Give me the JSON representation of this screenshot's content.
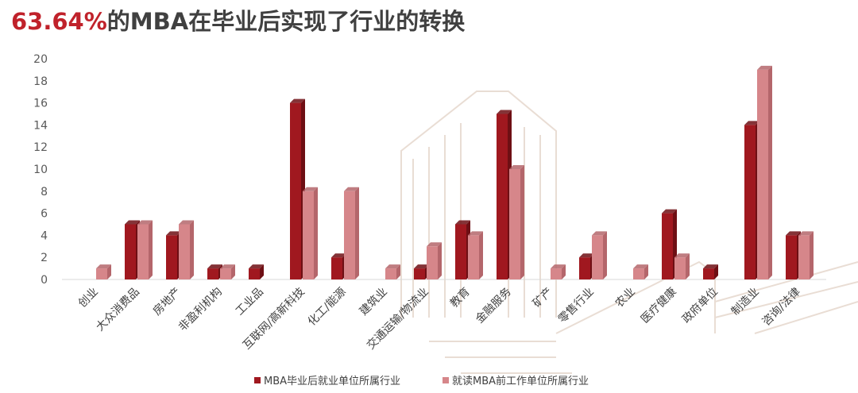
{
  "title": {
    "highlight": "63.64%",
    "rest": "的MBA在毕业后实现了行业的转换"
  },
  "colors": {
    "series_after": "#a0181f",
    "series_after_side": "#6e0f14",
    "series_before": "#d6868a",
    "series_before_side": "#b4666b",
    "title_highlight": "#c0222b"
  },
  "chart_data": {
    "type": "bar",
    "categories": [
      "创业",
      "大众消费品",
      "房地产",
      "非盈利机构",
      "工业品",
      "互联网/高新科技",
      "化工/能源",
      "建筑业",
      "交通运输/物流业",
      "教育",
      "金融服务",
      "矿产",
      "零售行业",
      "农业",
      "医疗健康",
      "政府单位",
      "制造业",
      "咨询/法律"
    ],
    "series": [
      {
        "name": "MBA毕业后就业单位所属行业",
        "values": [
          0,
          5,
          4,
          1,
          1,
          16,
          2,
          0,
          1,
          5,
          15,
          0,
          2,
          0,
          6,
          1,
          14,
          4
        ]
      },
      {
        "name": "就读MBA前工作单位所属行业",
        "values": [
          1,
          5,
          5,
          1,
          0,
          8,
          8,
          1,
          3,
          4,
          10,
          1,
          4,
          1,
          2,
          0,
          19,
          4
        ]
      }
    ],
    "ylim": [
      0,
      20
    ],
    "yticks": [
      "0",
      "2",
      "4",
      "6",
      "8",
      "10",
      "12",
      "14",
      "16",
      "18",
      "20"
    ],
    "legend_position": "bottom",
    "grid": false,
    "style": "3d"
  }
}
